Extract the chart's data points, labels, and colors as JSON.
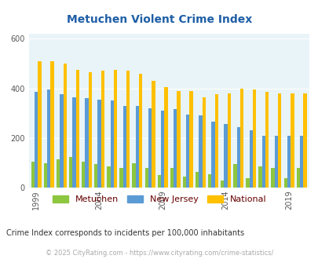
{
  "title": "Metuchen Violent Crime Index",
  "years": [
    1999,
    2000,
    2001,
    2002,
    2003,
    2004,
    2005,
    2006,
    2007,
    2008,
    2009,
    2010,
    2011,
    2012,
    2013,
    2014,
    2015,
    2016,
    2017,
    2018,
    2019,
    2020
  ],
  "metuchen": [
    105,
    100,
    115,
    125,
    105,
    95,
    85,
    80,
    100,
    80,
    50,
    80,
    45,
    65,
    55,
    30,
    95,
    40,
    85,
    80,
    40,
    80
  ],
  "new_jersey": [
    385,
    395,
    375,
    365,
    360,
    355,
    350,
    330,
    330,
    320,
    310,
    315,
    295,
    290,
    265,
    255,
    245,
    230,
    210,
    210,
    210,
    210
  ],
  "national": [
    510,
    510,
    500,
    475,
    465,
    470,
    475,
    470,
    460,
    430,
    405,
    390,
    390,
    365,
    375,
    380,
    400,
    395,
    385,
    380,
    380,
    380
  ],
  "metuchen_color": "#8dc63f",
  "nj_color": "#5b9bd5",
  "national_color": "#ffc000",
  "bg_color": "#e8f4f8",
  "ylim": [
    0,
    620
  ],
  "yticks": [
    0,
    200,
    400,
    600
  ],
  "xticks": [
    1999,
    2004,
    2009,
    2014,
    2019
  ],
  "subtitle": "Crime Index corresponds to incidents per 100,000 inhabitants",
  "footer": "© 2025 CityRating.com - https://www.cityrating.com/crime-statistics/",
  "title_color": "#1f5fa6",
  "subtitle_color": "#333333",
  "footer_color": "#aaaaaa",
  "legend_label_color": "#660000"
}
